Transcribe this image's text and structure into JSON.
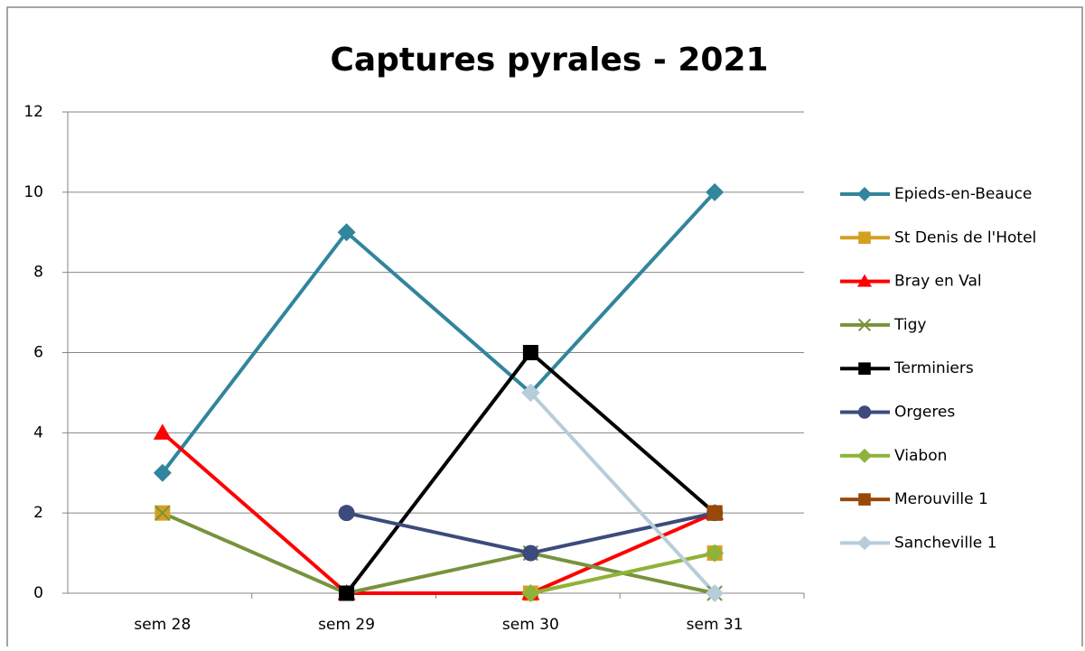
{
  "chart_data": {
    "type": "line",
    "title": "Captures pyrales - 2021",
    "categories": [
      "sem 28",
      "sem 29",
      "sem 30",
      "sem 31"
    ],
    "ylim": [
      0,
      12
    ],
    "yticks": [
      0,
      2,
      4,
      6,
      8,
      10,
      12
    ],
    "grid": true,
    "legend": "right",
    "series": [
      {
        "name": "Epieds-en-Beauce",
        "color": "#31859c",
        "marker": "diamond",
        "values": [
          3,
          9,
          5,
          10
        ]
      },
      {
        "name": "St Denis de l'Hotel",
        "color": "#d4a020",
        "marker": "square",
        "values": [
          2,
          null,
          0,
          1
        ]
      },
      {
        "name": "Bray en Val",
        "color": "#ff0000",
        "marker": "triangle",
        "values": [
          4,
          0,
          0,
          2
        ]
      },
      {
        "name": "Tigy",
        "color": "#77933c",
        "marker": "x",
        "values": [
          2,
          0,
          1,
          0
        ]
      },
      {
        "name": "Terminiers",
        "color": "#000000",
        "marker": "square",
        "values": [
          null,
          0,
          6,
          2
        ]
      },
      {
        "name": "Orgeres",
        "color": "#3c4b7c",
        "marker": "circle",
        "values": [
          null,
          2,
          1,
          2
        ]
      },
      {
        "name": "Viabon",
        "color": "#8db33a",
        "marker": "diamond",
        "values": [
          null,
          null,
          0,
          1
        ]
      },
      {
        "name": "Merouville 1",
        "color": "#984807",
        "marker": "square",
        "values": [
          null,
          null,
          null,
          2
        ]
      },
      {
        "name": "Sancheville 1",
        "color": "#b7cdd9",
        "marker": "diamond",
        "values": [
          null,
          null,
          5,
          0
        ]
      }
    ]
  }
}
